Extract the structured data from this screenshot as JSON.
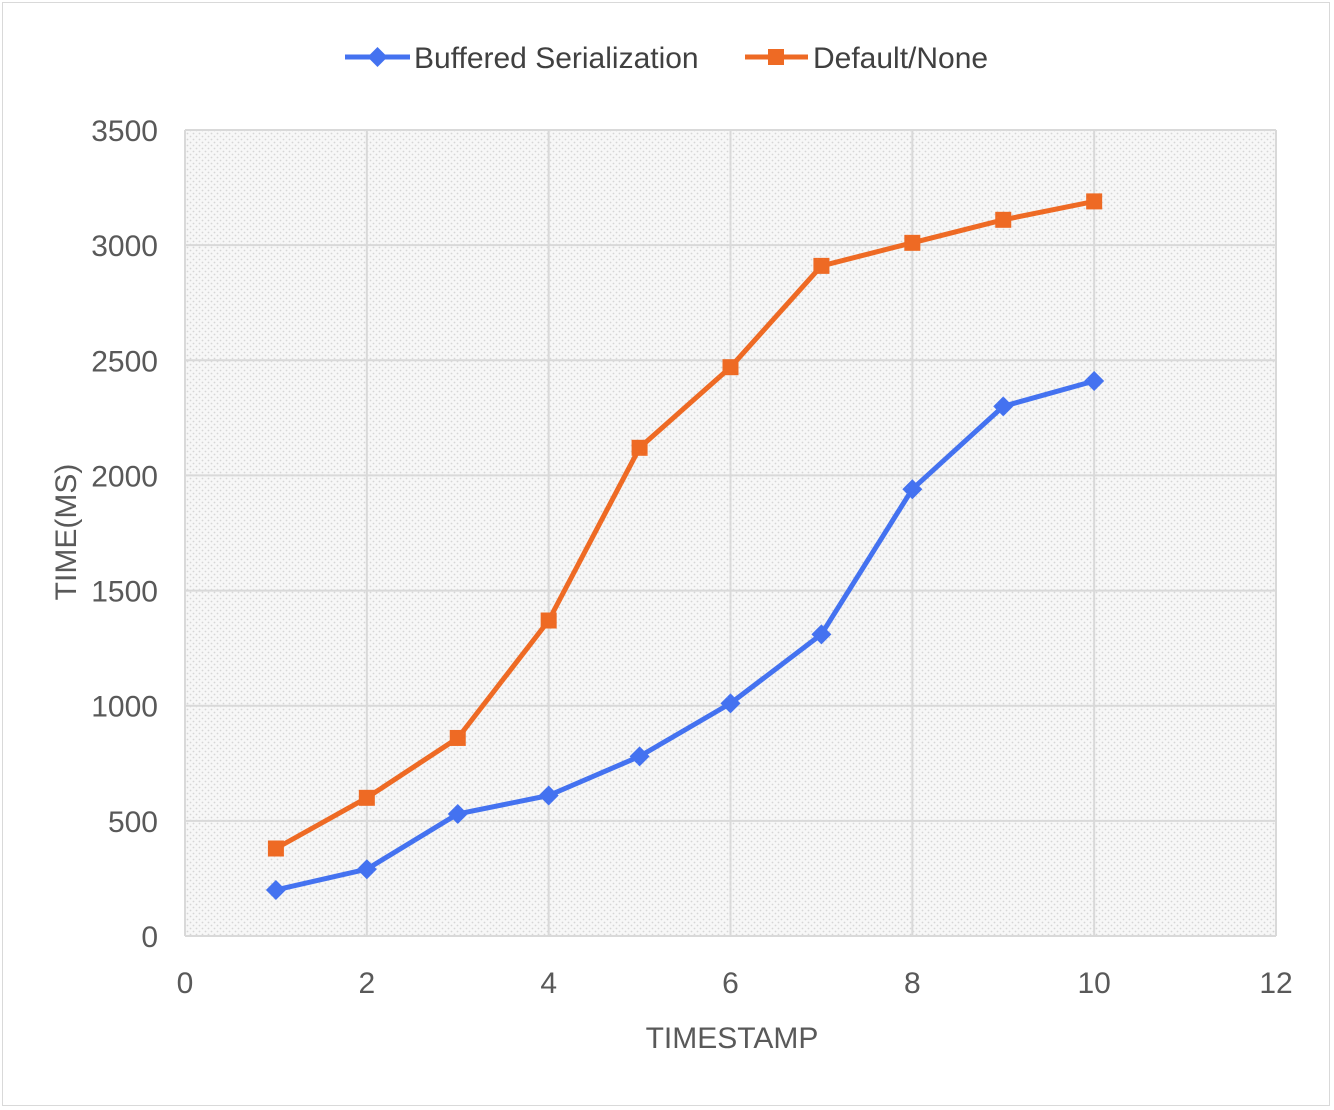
{
  "chart_data": {
    "type": "line",
    "title": "",
    "xlabel": "TIMESTAMP",
    "ylabel": "TIME(MS)",
    "xlim": [
      0,
      12
    ],
    "ylim": [
      0,
      3500
    ],
    "x_ticks": [
      0,
      2,
      4,
      6,
      8,
      10,
      12
    ],
    "y_ticks": [
      0,
      500,
      1000,
      1500,
      2000,
      2500,
      3000,
      3500
    ],
    "x_tick_labels": [
      "0",
      "2",
      "4",
      "6",
      "8",
      "10",
      "12"
    ],
    "y_tick_labels": [
      "0",
      "500",
      "1000",
      "1500",
      "2000",
      "2500",
      "3000",
      "3500"
    ],
    "grid": true,
    "legend_position": "top-center",
    "x": [
      1,
      2,
      3,
      4,
      5,
      6,
      7,
      8,
      9,
      10
    ],
    "series": [
      {
        "name": "Buffered Serialization",
        "color": "#4472f0",
        "marker": "diamond",
        "values": [
          200,
          290,
          530,
          610,
          780,
          1010,
          1310,
          1940,
          2300,
          2410
        ]
      },
      {
        "name": "Default/None",
        "color": "#ee6a24",
        "marker": "square",
        "values": [
          380,
          600,
          860,
          1370,
          2120,
          2470,
          2910,
          3010,
          3110,
          3190
        ]
      }
    ]
  }
}
